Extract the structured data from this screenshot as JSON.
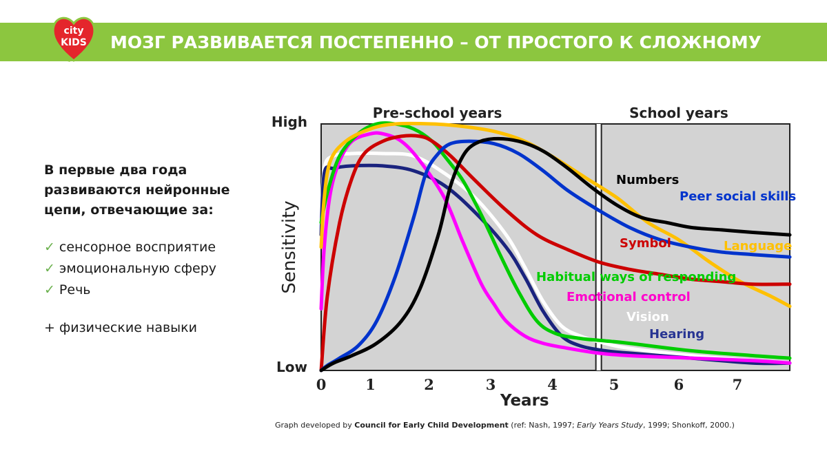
{
  "header": {
    "title": "МОЗГ РАЗВИВАЕТСЯ ПОСТЕПЕННО – ОТ ПРОСТОГО К СЛОЖНОМУ",
    "logo_text_line1": "city",
    "logo_text_line2": "KIDS"
  },
  "left": {
    "heading": "В первые два года\nразвиваются нейронные\nцепи, отвечающие за:",
    "bullets": [
      "сенсорное восприятие",
      "эмоциональную сферу",
      "Речь"
    ],
    "extra": "+ физические навыки"
  },
  "caption": {
    "prefix": "Graph developed by ",
    "org": "Council for Early Child Development",
    "ref_open": " (ref: Nash, 1997; ",
    "ref_italic": "Early Years Study",
    "ref_close": ", 1999; Shonkoff, 2000.)"
  },
  "chart_data": {
    "type": "line",
    "xlabel": "Years",
    "ylabel": "Sensitivity",
    "y_top_label": "High",
    "y_bottom_label": "Low",
    "xlim": [
      0,
      7.6
    ],
    "ylim": [
      0,
      1
    ],
    "x_ticks": [
      "0",
      "1",
      "2",
      "3",
      "4",
      "5",
      "6",
      "7"
    ],
    "x_tick_values": [
      0,
      0.8,
      1.75,
      2.75,
      3.75,
      4.75,
      5.8,
      6.75
    ],
    "regions": [
      {
        "label": "Pre-school years",
        "from": 0,
        "to": 4.5
      },
      {
        "label": "School years",
        "from": 4.5,
        "to": 7.6
      }
    ],
    "series": [
      {
        "name": "Vision",
        "color": "#ffffff",
        "label_color": "#ffffff",
        "x": [
          0,
          0.05,
          0.2,
          0.5,
          1,
          1.5,
          2,
          2.5,
          3,
          3.3,
          3.6,
          3.9,
          4.2,
          4.6,
          5,
          6,
          7,
          7.6
        ],
        "y": [
          0.6,
          0.82,
          0.87,
          0.88,
          0.88,
          0.87,
          0.8,
          0.7,
          0.55,
          0.42,
          0.28,
          0.18,
          0.14,
          0.11,
          0.09,
          0.06,
          0.04,
          0.03
        ]
      },
      {
        "name": "Hearing",
        "color": "#1a237e",
        "label_color": "#283593",
        "x": [
          0,
          0.05,
          0.2,
          0.5,
          1,
          1.5,
          2,
          2.5,
          3,
          3.3,
          3.6,
          3.9,
          4.2,
          4.6,
          5,
          6,
          7,
          7.6
        ],
        "y": [
          0.55,
          0.8,
          0.82,
          0.83,
          0.83,
          0.81,
          0.75,
          0.64,
          0.5,
          0.38,
          0.24,
          0.14,
          0.1,
          0.08,
          0.07,
          0.05,
          0.03,
          0.03
        ]
      },
      {
        "name": "Emotional control",
        "color": "#ff00ff",
        "label_color": "#ff00cc",
        "x": [
          0,
          0.05,
          0.15,
          0.3,
          0.5,
          0.8,
          1,
          1.3,
          1.6,
          2,
          2.3,
          2.6,
          2.8,
          3,
          3.3,
          3.6,
          4,
          4.5,
          5,
          6,
          7,
          7.6
        ],
        "y": [
          0.25,
          0.5,
          0.72,
          0.85,
          0.93,
          0.96,
          0.96,
          0.93,
          0.85,
          0.7,
          0.52,
          0.35,
          0.27,
          0.2,
          0.14,
          0.11,
          0.09,
          0.07,
          0.06,
          0.05,
          0.04,
          0.03
        ]
      },
      {
        "name": "Habitual ways of responding",
        "color": "#00cc00",
        "label_color": "#00cc00",
        "x": [
          0,
          0.1,
          0.3,
          0.6,
          0.9,
          1.2,
          1.5,
          1.8,
          2,
          2.3,
          2.6,
          2.9,
          3.2,
          3.5,
          3.8,
          4.2,
          4.6,
          5,
          6,
          7,
          7.6
        ],
        "y": [
          0.6,
          0.72,
          0.87,
          0.96,
          1,
          1,
          0.98,
          0.93,
          0.87,
          0.77,
          0.63,
          0.47,
          0.32,
          0.2,
          0.15,
          0.13,
          0.12,
          0.11,
          0.08,
          0.06,
          0.05
        ]
      },
      {
        "name": "Language",
        "color": "#ffc000",
        "label_color": "#ffc000",
        "x": [
          0,
          0.05,
          0.15,
          0.4,
          0.8,
          1.2,
          1.8,
          2.3,
          2.8,
          3.3,
          3.8,
          4.3,
          4.8,
          5.3,
          5.8,
          6.3,
          6.8,
          7.3,
          7.6
        ],
        "y": [
          0.5,
          0.7,
          0.85,
          0.93,
          0.98,
          1,
          1,
          0.99,
          0.97,
          0.93,
          0.86,
          0.78,
          0.7,
          0.6,
          0.53,
          0.44,
          0.36,
          0.3,
          0.26
        ]
      },
      {
        "name": "Symbol",
        "color": "#cc0000",
        "label_color": "#cc0000",
        "x": [
          0,
          0.1,
          0.3,
          0.5,
          0.7,
          1,
          1.3,
          1.6,
          1.8,
          2.1,
          2.5,
          3,
          3.5,
          4,
          4.5,
          5,
          5.5,
          6,
          6.5,
          7,
          7.6
        ],
        "y": [
          0,
          0.3,
          0.6,
          0.78,
          0.88,
          0.93,
          0.95,
          0.95,
          0.93,
          0.87,
          0.77,
          0.65,
          0.55,
          0.49,
          0.44,
          0.41,
          0.39,
          0.37,
          0.36,
          0.35,
          0.35
        ]
      },
      {
        "name": "Peer social skills",
        "color": "#0033cc",
        "label_color": "#0033cc",
        "x": [
          0,
          0.1,
          0.3,
          0.6,
          0.9,
          1.2,
          1.5,
          1.7,
          1.9,
          2.1,
          2.4,
          2.8,
          3.2,
          3.6,
          4,
          4.5,
          5,
          5.5,
          6,
          6.5,
          7,
          7.6
        ],
        "y": [
          0,
          0.02,
          0.05,
          0.1,
          0.2,
          0.38,
          0.62,
          0.8,
          0.88,
          0.92,
          0.93,
          0.92,
          0.88,
          0.81,
          0.73,
          0.65,
          0.58,
          0.53,
          0.5,
          0.48,
          0.47,
          0.46
        ]
      },
      {
        "name": "Numbers",
        "color": "#000000",
        "label_color": "#000000",
        "x": [
          0,
          0.2,
          0.5,
          0.9,
          1.3,
          1.6,
          1.9,
          2.1,
          2.3,
          2.5,
          2.8,
          3.2,
          3.6,
          4,
          4.4,
          4.8,
          5.2,
          5.6,
          6,
          6.5,
          7,
          7.6
        ],
        "y": [
          0,
          0.03,
          0.06,
          0.11,
          0.2,
          0.33,
          0.55,
          0.75,
          0.87,
          0.92,
          0.94,
          0.93,
          0.89,
          0.82,
          0.74,
          0.67,
          0.62,
          0.6,
          0.58,
          0.57,
          0.56,
          0.55
        ]
      }
    ],
    "grid": false,
    "legend": "inline labels"
  }
}
